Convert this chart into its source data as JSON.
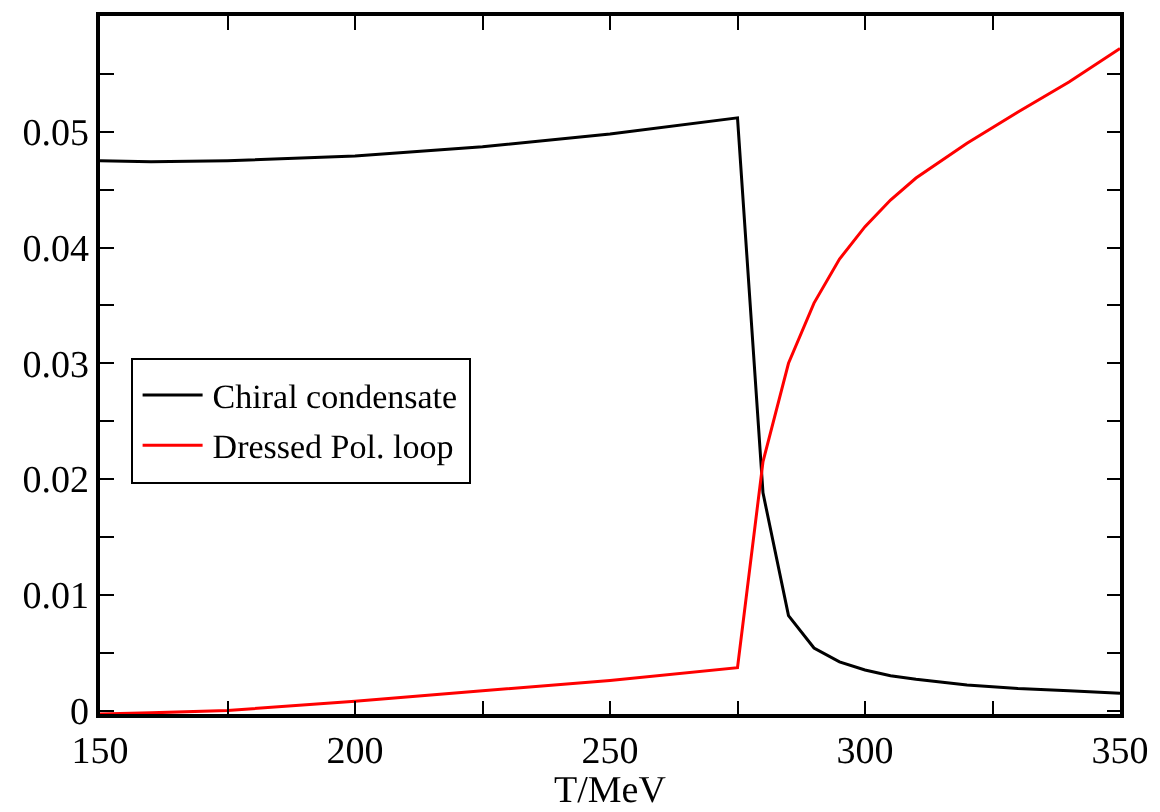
{
  "chart_data": {
    "type": "line",
    "xlabel": "T/MeV",
    "x": [
      150,
      160,
      175,
      200,
      225,
      250,
      275,
      280,
      285,
      290,
      295,
      300,
      305,
      310,
      320,
      330,
      340,
      350
    ],
    "series": [
      {
        "name": "Chiral condensate",
        "color": "#000000",
        "values": [
          0.0475,
          0.0474,
          0.0475,
          0.0479,
          0.0487,
          0.0498,
          0.0512,
          0.0188,
          0.0082,
          0.0054,
          0.0042,
          0.0035,
          0.003,
          0.0027,
          0.0022,
          0.0019,
          0.0017,
          0.0015
        ]
      },
      {
        "name": "Dressed Pol. loop",
        "color": "#ff0000",
        "values": [
          -0.0003,
          -0.0002,
          0.0,
          0.0008,
          0.0017,
          0.0026,
          0.0037,
          0.0215,
          0.03,
          0.0352,
          0.039,
          0.0418,
          0.0441,
          0.046,
          0.049,
          0.0517,
          0.0543,
          0.0572
        ]
      }
    ],
    "xlim": [
      150,
      350
    ],
    "xticks": [
      150,
      {
        "value": 175,
        "label": null
      },
      200,
      {
        "value": 225,
        "label": null
      },
      250,
      {
        "value": 275,
        "label": null
      },
      300,
      {
        "value": 325,
        "label": null
      },
      350
    ],
    "ylim": [
      -0.0003,
      0.06
    ],
    "yticks": [
      0,
      {
        "value": 0.005,
        "label": null
      },
      0.01,
      {
        "value": 0.015,
        "label": null
      },
      0.02,
      {
        "value": 0.025,
        "label": null
      },
      0.03,
      {
        "value": 0.035,
        "label": null
      },
      0.04,
      {
        "value": 0.045,
        "label": null
      },
      0.05,
      {
        "value": 0.055,
        "label": null
      }
    ],
    "legend": "left",
    "marker": "none",
    "line_style": "solid"
  }
}
